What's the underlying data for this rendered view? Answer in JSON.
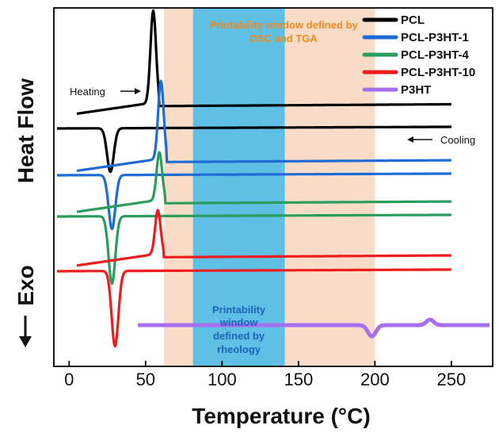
{
  "chart_data": {
    "type": "line",
    "xlabel": "Temperature (°C)",
    "ylabel": "Heat Flow",
    "ylabel_exo": "Exo",
    "xlim": [
      -10,
      277
    ],
    "xticks": [
      0,
      50,
      100,
      150,
      200,
      250
    ],
    "regions": [
      {
        "name": "dsc-tga-window",
        "x_range": [
          62,
          200
        ],
        "color": "#f9dcc8"
      },
      {
        "name": "rheology-window",
        "x_range": [
          81,
          141
        ],
        "color": "#60bfe4"
      }
    ],
    "annotations": {
      "dsc_tga_line1": "Printability window defined by",
      "dsc_tga_line2": "DSC and TGA",
      "rheology_line1": "Printability",
      "rheology_line2": "window",
      "rheology_line3": "defined by",
      "rheology_line4": "rheology",
      "heating": "Heating",
      "cooling": "Cooling"
    },
    "series": [
      {
        "name": "PCL",
        "color": "#000000",
        "baselines": {
          "heating": 0.6,
          "cooling": -27
        },
        "features": {
          "heating_melt_peak": {
            "x": 55,
            "height": 116
          },
          "cooling_cryst_peak": {
            "x": 27,
            "depth": 55
          }
        },
        "x_heating": [
          5,
          250
        ],
        "x_cooling": [
          -8,
          250
        ]
      },
      {
        "name": "PCL-P3HT-1",
        "color": "#1f6bd6",
        "baselines": {
          "heating": -70,
          "cooling": -86
        },
        "features": {
          "heating_melt_peak": {
            "x": 60,
            "height": 98
          },
          "cooling_cryst_peak": {
            "x": 28,
            "depth": 68
          }
        },
        "x_heating": [
          5,
          250
        ],
        "x_cooling": [
          -8,
          250
        ]
      },
      {
        "name": "PCL-P3HT-4",
        "color": "#2a9c5c",
        "baselines": {
          "heating": -122,
          "cooling": -138
        },
        "features": {
          "heating_melt_peak": {
            "x": 59,
            "height": 60
          },
          "cooling_cryst_peak": {
            "x": 28,
            "depth": 85
          }
        },
        "x_heating": [
          5,
          250
        ],
        "x_cooling": [
          -8,
          250
        ]
      },
      {
        "name": "PCL-P3HT-10",
        "color": "#ee1c1c",
        "baselines": {
          "heating": -190,
          "cooling": -207
        },
        "features": {
          "heating_melt_peak": {
            "x": 58,
            "height": 55
          },
          "cooling_cryst_peak": {
            "x": 30,
            "depth": 95
          }
        },
        "x_heating": [
          5,
          250
        ],
        "x_cooling": [
          -8,
          250
        ]
      },
      {
        "name": "P3HT",
        "color": "#a86ef0",
        "baselines": {
          "main": -275
        },
        "features": {
          "melt_peak": {
            "x": 236,
            "height": 7
          },
          "dip": {
            "x": 198,
            "depth": 14
          }
        },
        "x_range": [
          45,
          275
        ]
      }
    ]
  }
}
